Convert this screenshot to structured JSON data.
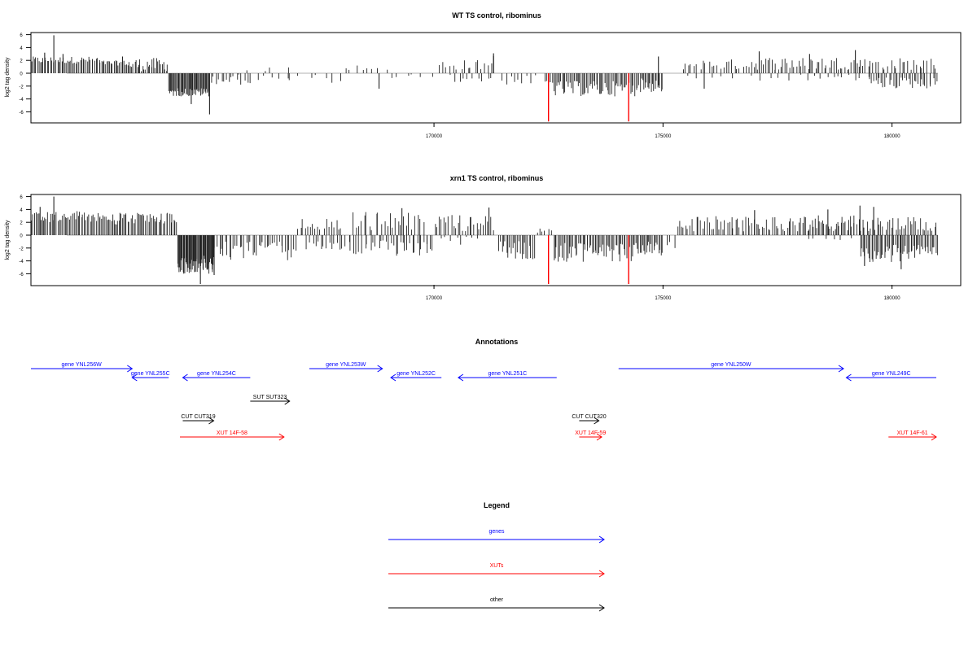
{
  "chart_data": [
    {
      "type": "bar",
      "title": "WT TS control, ribominus",
      "ylabel": "log2 tag density",
      "xlabel": "",
      "xlim": [
        161200,
        181500
      ],
      "ylim": [
        -8,
        7
      ],
      "x_ticks": [
        170000,
        175000,
        180000
      ],
      "y_ticks": [
        -6,
        -4,
        -2,
        0,
        2,
        4,
        6
      ],
      "grid": false,
      "colors": {
        "bars": "#222222",
        "highlight": "#ff0000",
        "baseline": "#999999",
        "frame": "#000000"
      },
      "segments": [
        {
          "x": [
            161200,
            162700
          ],
          "y": [
            1.5,
            2.6
          ],
          "dir": 1,
          "n": 48
        },
        {
          "x": [
            162700,
            163300
          ],
          "y": [
            1.2,
            2.0
          ],
          "dir": 1,
          "n": 20
        },
        {
          "x": [
            163300,
            164200
          ],
          "y": [
            0.3,
            2.4
          ],
          "dir": 1,
          "n": 30
        },
        {
          "x": [
            164200,
            165100
          ],
          "y": [
            -2.3,
            -3.6
          ],
          "dir": -1,
          "n": 48
        },
        {
          "x": [
            165100,
            166000
          ],
          "y": [
            -0.2,
            -1.8
          ],
          "dir": -1,
          "n": 16
        },
        {
          "x": [
            166000,
            168000
          ],
          "y": [
            -0.2,
            -1.5
          ],
          "dir": -1,
          "n": 12
        },
        {
          "x": [
            165800,
            167000
          ],
          "y": [
            0.3,
            1.0
          ],
          "dir": 1,
          "n": 4
        },
        {
          "x": [
            168000,
            169000
          ],
          "y": [
            0.4,
            1.8
          ],
          "dir": 1,
          "n": 8
        },
        {
          "x": [
            169000,
            170000
          ],
          "y": [
            -0.1,
            -0.8
          ],
          "dir": -1,
          "n": 6
        },
        {
          "x": [
            170100,
            171300
          ],
          "y": [
            0.5,
            2.1
          ],
          "dir": 1,
          "n": 16
        },
        {
          "x": [
            170300,
            171300
          ],
          "y": [
            -0.2,
            -1.5
          ],
          "dir": -1,
          "n": 10
        },
        {
          "x": [
            171400,
            172300
          ],
          "y": [
            -0.3,
            -1.8
          ],
          "dir": -1,
          "n": 9
        },
        {
          "x": [
            172400,
            172600
          ],
          "y": [
            -1.0,
            -2.0
          ],
          "dir": -1,
          "n": 6
        },
        {
          "x": [
            172600,
            174400
          ],
          "y": [
            -1.2,
            -3.6
          ],
          "dir": -1,
          "n": 60
        },
        {
          "x": [
            174400,
            175000
          ],
          "y": [
            -0.8,
            -3.0
          ],
          "dir": -1,
          "n": 22
        },
        {
          "x": [
            175400,
            176900
          ],
          "y": [
            0.5,
            2.2
          ],
          "dir": 1,
          "n": 24
        },
        {
          "x": [
            176900,
            178000
          ],
          "y": [
            0.5,
            2.6
          ],
          "dir": 1,
          "n": 22
        },
        {
          "x": [
            175400,
            178000
          ],
          "y": [
            -0.2,
            -1.2
          ],
          "dir": -1,
          "n": 10
        },
        {
          "x": [
            178000,
            179500
          ],
          "y": [
            0.5,
            2.6
          ],
          "dir": 1,
          "n": 30
        },
        {
          "x": [
            178000,
            179500
          ],
          "y": [
            -0.2,
            -1.2
          ],
          "dir": -1,
          "n": 12
        },
        {
          "x": [
            179500,
            181000
          ],
          "y": [
            0.5,
            2.4
          ],
          "dir": 1,
          "n": 24
        },
        {
          "x": [
            179500,
            181000
          ],
          "y": [
            -0.6,
            -2.4
          ],
          "dir": -1,
          "n": 36
        }
      ],
      "spikes": [
        {
          "x": 161700,
          "y": 5.9
        },
        {
          "x": 161500,
          "y": 3.2
        },
        {
          "x": 161900,
          "y": 3.0
        },
        {
          "x": 163200,
          "y": 2.6
        },
        {
          "x": 165100,
          "y": -6.4
        },
        {
          "x": 164700,
          "y": -4.8
        },
        {
          "x": 168800,
          "y": -2.4
        },
        {
          "x": 171300,
          "y": 3.1
        },
        {
          "x": 171300,
          "y": 2.7
        },
        {
          "x": 172500,
          "y": -7.5,
          "highlight": true
        },
        {
          "x": 174250,
          "y": -7.5,
          "highlight": true
        },
        {
          "x": 174900,
          "y": 2.6
        },
        {
          "x": 177100,
          "y": 3.4
        },
        {
          "x": 179200,
          "y": 3.6
        },
        {
          "x": 178200,
          "y": 3.0
        },
        {
          "x": 175900,
          "y": -2.4
        }
      ]
    },
    {
      "type": "bar",
      "title": "xrn1 TS control, ribominus",
      "ylabel": "log2 tag density",
      "xlabel": "",
      "xlim": [
        161200,
        181500
      ],
      "ylim": [
        -8,
        7
      ],
      "x_ticks": [
        170000,
        175000,
        180000
      ],
      "y_ticks": [
        -6,
        -4,
        -2,
        0,
        2,
        4,
        6
      ],
      "grid": false,
      "colors": {
        "bars": "#222222",
        "highlight": "#ff0000",
        "baseline": "#999999",
        "frame": "#000000"
      },
      "segments": [
        {
          "x": [
            161200,
            162800
          ],
          "y": [
            2.0,
            3.8
          ],
          "dir": 1,
          "n": 50
        },
        {
          "x": [
            162800,
            163300
          ],
          "y": [
            1.5,
            3.5
          ],
          "dir": 1,
          "n": 18
        },
        {
          "x": [
            163300,
            164400
          ],
          "y": [
            1.8,
            3.5
          ],
          "dir": 1,
          "n": 34
        },
        {
          "x": [
            164400,
            165200
          ],
          "y": [
            -3.2,
            -6.0
          ],
          "dir": -1,
          "n": 56
        },
        {
          "x": [
            165200,
            167000
          ],
          "y": [
            -1.0,
            -4.0
          ],
          "dir": -1,
          "n": 40
        },
        {
          "x": [
            167000,
            168000
          ],
          "y": [
            0.5,
            2.6
          ],
          "dir": 1,
          "n": 18
        },
        {
          "x": [
            167200,
            169000
          ],
          "y": [
            -0.8,
            -3.0
          ],
          "dir": -1,
          "n": 30
        },
        {
          "x": [
            168200,
            169800
          ],
          "y": [
            0.6,
            3.8
          ],
          "dir": 1,
          "n": 26
        },
        {
          "x": [
            169000,
            170000
          ],
          "y": [
            -1.0,
            -3.5
          ],
          "dir": -1,
          "n": 20
        },
        {
          "x": [
            170000,
            171300
          ],
          "y": [
            0.6,
            3.2
          ],
          "dir": 1,
          "n": 26
        },
        {
          "x": [
            170100,
            171000
          ],
          "y": [
            -0.2,
            -1.5
          ],
          "dir": -1,
          "n": 8
        },
        {
          "x": [
            171400,
            172200
          ],
          "y": [
            -0.8,
            -3.8
          ],
          "dir": -1,
          "n": 24
        },
        {
          "x": [
            172200,
            172600
          ],
          "y": [
            0.3,
            1.2
          ],
          "dir": 1,
          "n": 6
        },
        {
          "x": [
            172600,
            174400
          ],
          "y": [
            -1.2,
            -4.2
          ],
          "dir": -1,
          "n": 60
        },
        {
          "x": [
            174400,
            175000
          ],
          "y": [
            -0.8,
            -3.2
          ],
          "dir": -1,
          "n": 22
        },
        {
          "x": [
            175000,
            175300
          ],
          "y": [
            -1.0,
            -3.2
          ],
          "dir": -1,
          "n": 3
        },
        {
          "x": [
            175300,
            178000
          ],
          "y": [
            0.6,
            3.0
          ],
          "dir": 1,
          "n": 60
        },
        {
          "x": [
            178000,
            179200
          ],
          "y": [
            0.6,
            3.2
          ],
          "dir": 1,
          "n": 36
        },
        {
          "x": [
            178000,
            179300
          ],
          "y": [
            -0.2,
            -1.0
          ],
          "dir": -1,
          "n": 6
        },
        {
          "x": [
            179200,
            181000
          ],
          "y": [
            0.5,
            2.8
          ],
          "dir": 1,
          "n": 40
        },
        {
          "x": [
            179300,
            181000
          ],
          "y": [
            -1.5,
            -4.2
          ],
          "dir": -1,
          "n": 56
        }
      ],
      "spikes": [
        {
          "x": 161700,
          "y": 6.0
        },
        {
          "x": 161400,
          "y": 4.4
        },
        {
          "x": 164900,
          "y": -7.6
        },
        {
          "x": 165200,
          "y": -6.2
        },
        {
          "x": 169300,
          "y": 4.2
        },
        {
          "x": 171200,
          "y": 4.3
        },
        {
          "x": 172500,
          "y": -7.6,
          "highlight": true
        },
        {
          "x": 174250,
          "y": -7.6,
          "highlight": true
        },
        {
          "x": 177000,
          "y": 3.9
        },
        {
          "x": 178600,
          "y": 4.0
        },
        {
          "x": 179300,
          "y": 4.6
        },
        {
          "x": 179600,
          "y": 4.4
        },
        {
          "x": 180200,
          "y": -5.3
        },
        {
          "x": 179400,
          "y": -4.8
        }
      ]
    }
  ],
  "annotations": {
    "title": "Annotations",
    "tracks": [
      {
        "label": "gene YNL256W",
        "type": "gene",
        "strand": "+",
        "start": 161200,
        "end": 163000,
        "row": 0
      },
      {
        "label": "gene YNL255C",
        "type": "gene",
        "strand": "-",
        "start": 163000,
        "end": 163650,
        "row": 1
      },
      {
        "label": "gene YNL254C",
        "type": "gene",
        "strand": "-",
        "start": 163900,
        "end": 165100,
        "row": 1
      },
      {
        "label": "gene YNL253W",
        "type": "gene",
        "strand": "+",
        "start": 166150,
        "end": 167450,
        "row": 0
      },
      {
        "label": "gene YNL252C",
        "type": "gene",
        "strand": "-",
        "start": 167600,
        "end": 168500,
        "row": 1
      },
      {
        "label": "gene YNL251C",
        "type": "gene",
        "strand": "-",
        "start": 168800,
        "end": 170550,
        "row": 1
      },
      {
        "label": "gene YNL250W",
        "type": "gene",
        "strand": "+",
        "start": 171650,
        "end": 175650,
        "row": 0
      },
      {
        "label": "gene YNL249C",
        "type": "gene",
        "strand": "-",
        "start": 175700,
        "end": 177300,
        "row": 1
      },
      {
        "label": "SUT SUT323",
        "type": "other",
        "strand": "+",
        "start": 165100,
        "end": 165800,
        "row": 2
      },
      {
        "label": "CUT CUT319",
        "type": "other",
        "strand": "+",
        "start": 163900,
        "end": 164450,
        "row": 3
      },
      {
        "label": "CUT CUT320",
        "type": "other",
        "strand": "+",
        "start": 170950,
        "end": 171300,
        "row": 3
      },
      {
        "label": "XUT 14F-58",
        "type": "xut",
        "strand": "+",
        "start": 163850,
        "end": 165700,
        "row": 4
      },
      {
        "label": "XUT 14F-59",
        "type": "xut",
        "strand": "+",
        "start": 170950,
        "end": 171350,
        "row": 4
      },
      {
        "label": "XUT 14F-61",
        "type": "xut",
        "strand": "+",
        "start": 176450,
        "end": 177300,
        "row": 4
      }
    ]
  },
  "legend": {
    "title": "Legend",
    "items": [
      {
        "label": "genes",
        "color": "#0000ff"
      },
      {
        "label": "XUTs",
        "color": "#ff0000"
      },
      {
        "label": "other",
        "color": "#000000"
      }
    ]
  },
  "colors": {
    "gene": "#0000ff",
    "xut": "#ff0000",
    "other": "#000000"
  }
}
